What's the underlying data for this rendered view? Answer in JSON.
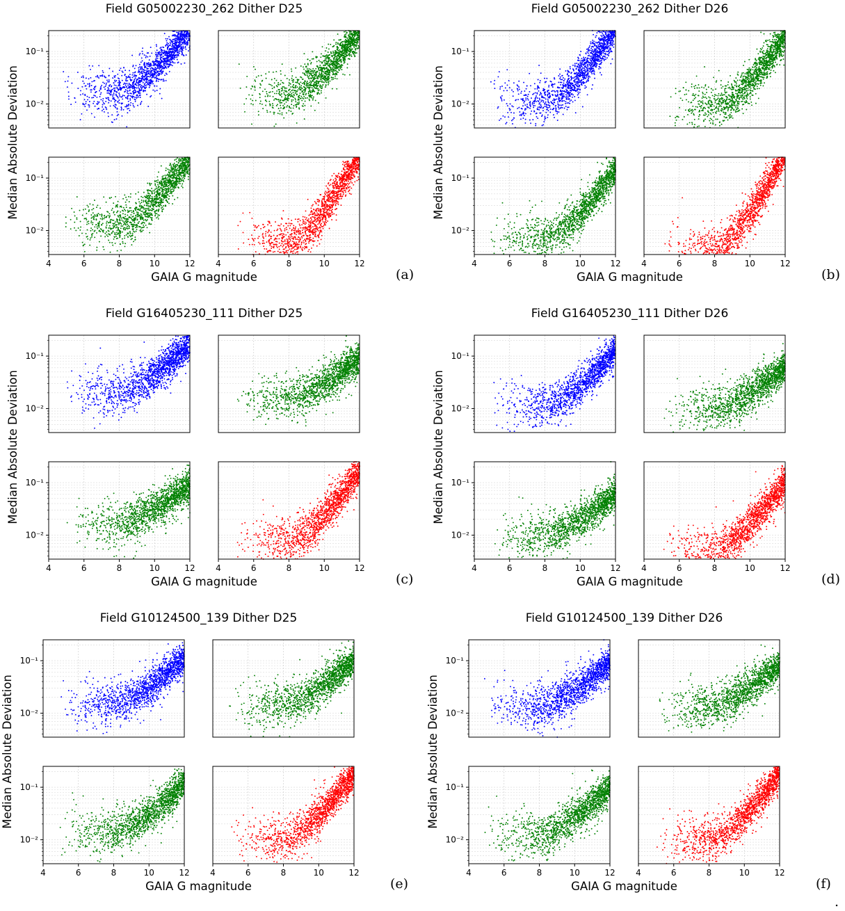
{
  "chart_data": [
    {
      "type": "scatter",
      "label": "(a)",
      "title": "Field G05002230_262 Dither D25",
      "xlabel": "GAIA G magnitude",
      "ylabel": "Median Absolute Deviation",
      "xlim": [
        4,
        12
      ],
      "ylim": [
        0.0035,
        0.25
      ],
      "yscale": "log",
      "xticks": [
        "4",
        "6",
        "8",
        "10",
        "12"
      ],
      "yticks": [
        "10⁻²",
        "10⁻¹"
      ],
      "grid": true,
      "panels": [
        {
          "color": "#0000ff",
          "xmin": 4.6,
          "floor": 0.017,
          "ceil": 0.03,
          "rise": 0.36
        },
        {
          "color": "#008000",
          "xmin": 4.9,
          "floor": 0.015,
          "ceil": 0.026,
          "rise": 0.36
        },
        {
          "color": "#008000",
          "xmin": 4.6,
          "floor": 0.013,
          "ceil": 0.028,
          "rise": 0.38
        },
        {
          "color": "#ff0000",
          "xmin": 5.0,
          "floor": 0.006,
          "ceil": 0.016,
          "rise": 0.5
        }
      ]
    },
    {
      "type": "scatter",
      "label": "(b)",
      "title": "Field G05002230_262 Dither D26",
      "xlabel": "GAIA G magnitude",
      "ylabel": "Median Absolute Deviation",
      "xlim": [
        4,
        12
      ],
      "ylim": [
        0.0035,
        0.25
      ],
      "yscale": "log",
      "xticks": [
        "4",
        "6",
        "8",
        "10",
        "12"
      ],
      "yticks": [
        "10⁻²",
        "10⁻¹"
      ],
      "grid": true,
      "panels": [
        {
          "color": "#0000ff",
          "xmin": 4.8,
          "floor": 0.011,
          "ceil": 0.03,
          "rise": 0.42
        },
        {
          "color": "#008000",
          "xmin": 4.9,
          "floor": 0.009,
          "ceil": 0.022,
          "rise": 0.4
        },
        {
          "color": "#008000",
          "xmin": 4.7,
          "floor": 0.007,
          "ceil": 0.02,
          "rise": 0.4
        },
        {
          "color": "#ff0000",
          "xmin": 4.9,
          "floor": 0.0045,
          "ceil": 0.012,
          "rise": 0.55
        }
      ]
    },
    {
      "type": "scatter",
      "label": "(c)",
      "title": "Field G16405230_111 Dither D25",
      "xlabel": "GAIA G magnitude",
      "ylabel": "Median Absolute Deviation",
      "xlim": [
        4,
        12
      ],
      "ylim": [
        0.0035,
        0.25
      ],
      "yscale": "log",
      "xticks": [
        "4",
        "6",
        "8",
        "10",
        "12"
      ],
      "yticks": [
        "10⁻²",
        "10⁻¹"
      ],
      "grid": true,
      "panels": [
        {
          "color": "#0000ff",
          "xmin": 4.8,
          "floor": 0.02,
          "ceil": 0.04,
          "rise": 0.28
        },
        {
          "color": "#008000",
          "xmin": 4.9,
          "floor": 0.016,
          "ceil": 0.03,
          "rise": 0.22
        },
        {
          "color": "#008000",
          "xmin": 4.8,
          "floor": 0.017,
          "ceil": 0.03,
          "rise": 0.22
        },
        {
          "color": "#ff0000",
          "xmin": 4.8,
          "floor": 0.008,
          "ceil": 0.018,
          "rise": 0.4
        }
      ]
    },
    {
      "type": "scatter",
      "label": "(d)",
      "title": "Field G16405230_111 Dither D26",
      "xlabel": "GAIA G magnitude",
      "ylabel": "Median Absolute Deviation",
      "xlim": [
        4,
        12
      ],
      "ylim": [
        0.0035,
        0.25
      ],
      "yscale": "log",
      "xticks": [
        "4",
        "6",
        "8",
        "10",
        "12"
      ],
      "yticks": [
        "10⁻²",
        "10⁻¹"
      ],
      "grid": true,
      "panels": [
        {
          "color": "#0000ff",
          "xmin": 4.7,
          "floor": 0.011,
          "ceil": 0.028,
          "rise": 0.32
        },
        {
          "color": "#008000",
          "xmin": 4.9,
          "floor": 0.01,
          "ceil": 0.022,
          "rise": 0.24
        },
        {
          "color": "#008000",
          "xmin": 4.8,
          "floor": 0.01,
          "ceil": 0.02,
          "rise": 0.24
        },
        {
          "color": "#ff0000",
          "xmin": 4.8,
          "floor": 0.0055,
          "ceil": 0.014,
          "rise": 0.38
        }
      ]
    },
    {
      "type": "scatter",
      "label": "(e)",
      "title": "Field G10124500_139 Dither D25",
      "xlabel": "GAIA G magnitude",
      "ylabel": "Median Absolute Deviation",
      "xlim": [
        4,
        12
      ],
      "ylim": [
        0.0035,
        0.25
      ],
      "yscale": "log",
      "xticks": [
        "4",
        "6",
        "8",
        "10",
        "12"
      ],
      "yticks": [
        "10⁻²",
        "10⁻¹"
      ],
      "grid": true,
      "panels": [
        {
          "color": "#0000ff",
          "xmin": 4.6,
          "floor": 0.015,
          "ceil": 0.03,
          "rise": 0.26
        },
        {
          "color": "#008000",
          "xmin": 4.8,
          "floor": 0.014,
          "ceil": 0.022,
          "rise": 0.26
        },
        {
          "color": "#008000",
          "xmin": 4.6,
          "floor": 0.014,
          "ceil": 0.022,
          "rise": 0.28
        },
        {
          "color": "#ff0000",
          "xmin": 4.8,
          "floor": 0.01,
          "ceil": 0.016,
          "rise": 0.38
        }
      ]
    },
    {
      "type": "scatter",
      "label": "(f)",
      "title": "Field G10124500_139 Dither D26",
      "xlabel": "GAIA G magnitude",
      "ylabel": "Median Absolute Deviation",
      "xlim": [
        4,
        12
      ],
      "ylim": [
        0.0035,
        0.25
      ],
      "yscale": "log",
      "xticks": [
        "4",
        "6",
        "8",
        "10",
        "12"
      ],
      "yticks": [
        "10⁻²",
        "10⁻¹"
      ],
      "grid": true,
      "panels": [
        {
          "color": "#0000ff",
          "xmin": 4.6,
          "floor": 0.013,
          "ceil": 0.028,
          "rise": 0.26
        },
        {
          "color": "#008000",
          "xmin": 4.8,
          "floor": 0.013,
          "ceil": 0.02,
          "rise": 0.24
        },
        {
          "color": "#008000",
          "xmin": 4.6,
          "floor": 0.013,
          "ceil": 0.02,
          "rise": 0.26
        },
        {
          "color": "#ff0000",
          "xmin": 4.8,
          "floor": 0.01,
          "ceil": 0.016,
          "rise": 0.38
        }
      ]
    }
  ],
  "trailing_mark": "."
}
